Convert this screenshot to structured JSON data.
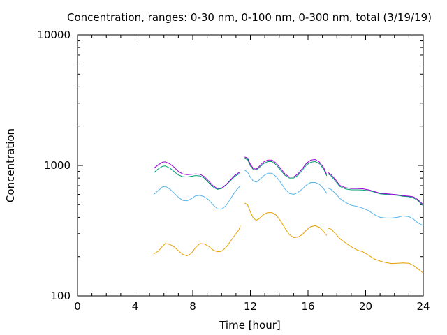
{
  "chart_data": {
    "type": "line",
    "title": "Concentration, ranges: 0-30 nm, 0-100 nm, 0-300 nm, total (3/19/19)",
    "xlabel": "Time [hour]",
    "ylabel": "Concentration",
    "xlim": [
      0,
      24
    ],
    "ylim": [
      100,
      10000
    ],
    "yscale": "log",
    "x_ticks": [
      "0",
      "4",
      "8",
      "12",
      "16",
      "20",
      "24"
    ],
    "y_ticks": [
      "100",
      "1000",
      "10000"
    ],
    "grid": false,
    "legend": "none",
    "series": [
      {
        "color": "#e69f00",
        "segments": [
          [
            [
              5.3,
              210
            ],
            [
              5.6,
              220
            ],
            [
              5.9,
              240
            ],
            [
              6.1,
              252
            ],
            [
              6.4,
              248
            ],
            [
              6.7,
              238
            ],
            [
              7.0,
              222
            ],
            [
              7.3,
              208
            ],
            [
              7.6,
              203
            ],
            [
              7.9,
              212
            ],
            [
              8.2,
              235
            ],
            [
              8.5,
              252
            ],
            [
              8.8,
              250
            ],
            [
              9.1,
              240
            ],
            [
              9.4,
              225
            ],
            [
              9.7,
              218
            ],
            [
              10.0,
              220
            ],
            [
              10.3,
              235
            ],
            [
              10.6,
              260
            ],
            [
              10.9,
              290
            ],
            [
              11.2,
              320
            ],
            [
              11.3,
              345
            ]
          ],
          [
            [
              11.6,
              515
            ],
            [
              11.8,
              500
            ],
            [
              12.0,
              440
            ],
            [
              12.2,
              395
            ],
            [
              12.4,
              380
            ],
            [
              12.6,
              390
            ],
            [
              12.9,
              420
            ],
            [
              13.2,
              435
            ],
            [
              13.5,
              435
            ],
            [
              13.8,
              415
            ],
            [
              14.1,
              375
            ],
            [
              14.4,
              330
            ],
            [
              14.7,
              295
            ],
            [
              15.0,
              280
            ],
            [
              15.3,
              282
            ],
            [
              15.6,
              295
            ],
            [
              15.9,
              320
            ],
            [
              16.2,
              340
            ],
            [
              16.5,
              345
            ],
            [
              16.8,
              335
            ],
            [
              17.1,
              310
            ],
            [
              17.3,
              290
            ]
          ],
          [
            [
              17.4,
              330
            ],
            [
              17.6,
              325
            ],
            [
              17.9,
              300
            ],
            [
              18.2,
              275
            ],
            [
              18.6,
              255
            ],
            [
              19.0,
              238
            ],
            [
              19.4,
              225
            ],
            [
              19.8,
              218
            ],
            [
              20.2,
              205
            ],
            [
              20.6,
              192
            ],
            [
              21.0,
              185
            ],
            [
              21.4,
              180
            ],
            [
              21.8,
              177
            ],
            [
              22.2,
              178
            ],
            [
              22.6,
              179
            ],
            [
              23.0,
              178
            ],
            [
              23.3,
              172
            ],
            [
              23.6,
              162
            ],
            [
              24.0,
              150
            ]
          ]
        ]
      },
      {
        "color": "#56b4e9",
        "segments": [
          [
            [
              5.3,
              600
            ],
            [
              5.6,
              640
            ],
            [
              5.9,
              685
            ],
            [
              6.1,
              690
            ],
            [
              6.4,
              660
            ],
            [
              6.7,
              615
            ],
            [
              7.0,
              570
            ],
            [
              7.3,
              540
            ],
            [
              7.6,
              535
            ],
            [
              7.9,
              555
            ],
            [
              8.2,
              585
            ],
            [
              8.5,
              590
            ],
            [
              8.8,
              575
            ],
            [
              9.1,
              545
            ],
            [
              9.4,
              500
            ],
            [
              9.7,
              465
            ],
            [
              10.0,
              462
            ],
            [
              10.3,
              490
            ],
            [
              10.6,
              550
            ],
            [
              10.9,
              620
            ],
            [
              11.2,
              680
            ],
            [
              11.3,
              700
            ]
          ],
          [
            [
              11.6,
              920
            ],
            [
              11.8,
              890
            ],
            [
              12.0,
              810
            ],
            [
              12.2,
              760
            ],
            [
              12.4,
              745
            ],
            [
              12.6,
              770
            ],
            [
              12.9,
              830
            ],
            [
              13.2,
              870
            ],
            [
              13.5,
              870
            ],
            [
              13.8,
              820
            ],
            [
              14.1,
              740
            ],
            [
              14.4,
              660
            ],
            [
              14.7,
              610
            ],
            [
              15.0,
              600
            ],
            [
              15.3,
              620
            ],
            [
              15.6,
              660
            ],
            [
              15.9,
              710
            ],
            [
              16.2,
              740
            ],
            [
              16.5,
              740
            ],
            [
              16.8,
              715
            ],
            [
              17.1,
              660
            ],
            [
              17.3,
              610
            ]
          ],
          [
            [
              17.4,
              670
            ],
            [
              17.6,
              655
            ],
            [
              17.9,
              610
            ],
            [
              18.2,
              560
            ],
            [
              18.6,
              520
            ],
            [
              19.0,
              495
            ],
            [
              19.4,
              485
            ],
            [
              19.8,
              470
            ],
            [
              20.2,
              450
            ],
            [
              20.6,
              420
            ],
            [
              21.0,
              400
            ],
            [
              21.4,
              395
            ],
            [
              21.8,
              395
            ],
            [
              22.2,
              400
            ],
            [
              22.6,
              410
            ],
            [
              23.0,
              405
            ],
            [
              23.3,
              390
            ],
            [
              23.6,
              365
            ],
            [
              24.0,
              345
            ]
          ]
        ]
      },
      {
        "color": "#009e73",
        "segments": [
          [
            [
              5.3,
              880
            ],
            [
              5.6,
              940
            ],
            [
              5.9,
              985
            ],
            [
              6.1,
              990
            ],
            [
              6.4,
              955
            ],
            [
              6.7,
              900
            ],
            [
              7.0,
              845
            ],
            [
              7.3,
              820
            ],
            [
              7.6,
              815
            ],
            [
              7.9,
              825
            ],
            [
              8.2,
              835
            ],
            [
              8.5,
              830
            ],
            [
              8.8,
              800
            ],
            [
              9.1,
              740
            ],
            [
              9.4,
              685
            ],
            [
              9.7,
              655
            ],
            [
              10.0,
              665
            ],
            [
              10.3,
              705
            ],
            [
              10.6,
              760
            ],
            [
              10.9,
              820
            ],
            [
              11.2,
              860
            ],
            [
              11.3,
              870
            ]
          ],
          [
            [
              11.6,
              1130
            ],
            [
              11.8,
              1110
            ],
            [
              12.0,
              990
            ],
            [
              12.2,
              930
            ],
            [
              12.4,
              920
            ],
            [
              12.6,
              960
            ],
            [
              12.9,
              1030
            ],
            [
              13.2,
              1070
            ],
            [
              13.5,
              1070
            ],
            [
              13.8,
              1010
            ],
            [
              14.1,
              920
            ],
            [
              14.4,
              840
            ],
            [
              14.7,
              800
            ],
            [
              15.0,
              800
            ],
            [
              15.3,
              840
            ],
            [
              15.6,
              920
            ],
            [
              15.9,
              1010
            ],
            [
              16.2,
              1060
            ],
            [
              16.5,
              1070
            ],
            [
              16.8,
              1030
            ],
            [
              17.1,
              930
            ],
            [
              17.3,
              830
            ]
          ],
          [
            [
              17.4,
              860
            ],
            [
              17.6,
              830
            ],
            [
              17.9,
              760
            ],
            [
              18.2,
              690
            ],
            [
              18.6,
              660
            ],
            [
              19.0,
              650
            ],
            [
              19.4,
              650
            ],
            [
              19.8,
              648
            ],
            [
              20.2,
              640
            ],
            [
              20.6,
              625
            ],
            [
              21.0,
              605
            ],
            [
              21.4,
              600
            ],
            [
              21.8,
              595
            ],
            [
              22.2,
              590
            ],
            [
              22.6,
              580
            ],
            [
              23.0,
              575
            ],
            [
              23.3,
              565
            ],
            [
              23.6,
              540
            ],
            [
              24.0,
              490
            ]
          ]
        ]
      },
      {
        "color": "#9400d3",
        "segments": [
          [
            [
              5.3,
              950
            ],
            [
              5.6,
              1010
            ],
            [
              5.9,
              1060
            ],
            [
              6.1,
              1065
            ],
            [
              6.4,
              1030
            ],
            [
              6.7,
              970
            ],
            [
              7.0,
              900
            ],
            [
              7.3,
              860
            ],
            [
              7.6,
              850
            ],
            [
              7.9,
              855
            ],
            [
              8.2,
              860
            ],
            [
              8.5,
              855
            ],
            [
              8.8,
              820
            ],
            [
              9.1,
              760
            ],
            [
              9.4,
              700
            ],
            [
              9.7,
              665
            ],
            [
              10.0,
              670
            ],
            [
              10.3,
              710
            ],
            [
              10.6,
              770
            ],
            [
              10.9,
              835
            ],
            [
              11.2,
              880
            ],
            [
              11.3,
              890
            ]
          ],
          [
            [
              11.6,
              1160
            ],
            [
              11.8,
              1140
            ],
            [
              12.0,
              1020
            ],
            [
              12.2,
              950
            ],
            [
              12.4,
              935
            ],
            [
              12.6,
              980
            ],
            [
              12.9,
              1060
            ],
            [
              13.2,
              1100
            ],
            [
              13.5,
              1100
            ],
            [
              13.8,
              1040
            ],
            [
              14.1,
              945
            ],
            [
              14.4,
              860
            ],
            [
              14.7,
              815
            ],
            [
              15.0,
              815
            ],
            [
              15.3,
              860
            ],
            [
              15.6,
              945
            ],
            [
              15.9,
              1040
            ],
            [
              16.2,
              1100
            ],
            [
              16.5,
              1110
            ],
            [
              16.8,
              1060
            ],
            [
              17.1,
              955
            ],
            [
              17.3,
              850
            ]
          ],
          [
            [
              17.4,
              880
            ],
            [
              17.6,
              850
            ],
            [
              17.9,
              780
            ],
            [
              18.2,
              705
            ],
            [
              18.6,
              675
            ],
            [
              19.0,
              665
            ],
            [
              19.4,
              665
            ],
            [
              19.8,
              662
            ],
            [
              20.2,
              650
            ],
            [
              20.6,
              632
            ],
            [
              21.0,
              612
            ],
            [
              21.4,
              607
            ],
            [
              21.8,
              602
            ],
            [
              22.2,
              596
            ],
            [
              22.6,
              586
            ],
            [
              23.0,
              582
            ],
            [
              23.3,
              575
            ],
            [
              23.6,
              550
            ],
            [
              24.0,
              500
            ]
          ]
        ]
      }
    ]
  }
}
